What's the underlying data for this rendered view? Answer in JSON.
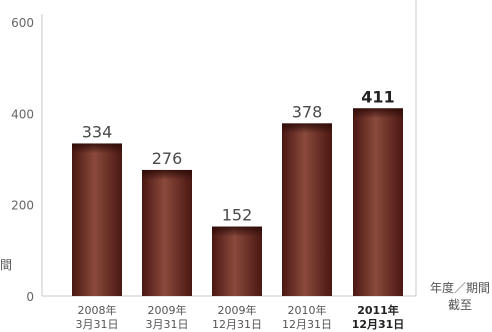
{
  "chart_data": {
    "type": "bar",
    "categories": [
      [
        "2008年",
        "3月31日"
      ],
      [
        "2009年",
        "3月31日"
      ],
      [
        "2009年",
        "12月31日"
      ],
      [
        "2010年",
        "12月31日"
      ],
      [
        "2011年",
        "12月31日"
      ]
    ],
    "values": [
      334,
      276,
      152,
      378,
      411
    ],
    "emphasized_index": 4,
    "ylim": [
      0,
      600
    ],
    "yticks": [
      0,
      200,
      400,
      600
    ],
    "grid": false,
    "unit_label": [
      "年度／期間",
      "截至"
    ],
    "left_fragment": "間",
    "bar_color": "#6e2a22"
  }
}
